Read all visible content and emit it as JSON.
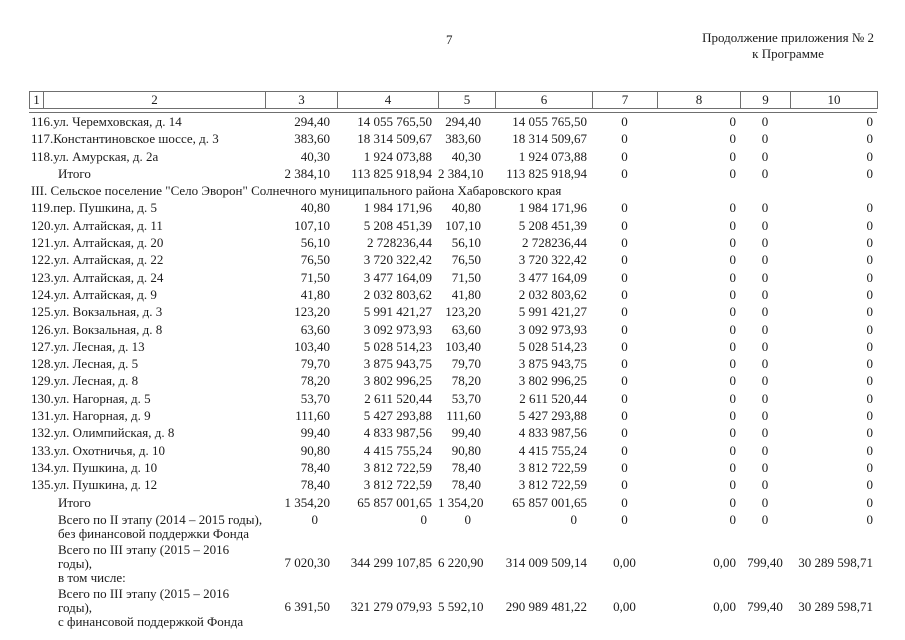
{
  "page": {
    "number": "7",
    "header_right_line1": "Продолжение приложения № 2",
    "header_right_line2": "к Программе"
  },
  "table": {
    "header_cols": [
      "1",
      "2",
      "3",
      "4",
      "5",
      "6",
      "7",
      "8",
      "9",
      "10"
    ],
    "rows": [
      {
        "type": "item",
        "label": "116.ул. Черемховская, д. 14",
        "values": [
          "294,40",
          "14 055 765,50",
          "294,40",
          "14 055 765,50",
          "0",
          "0",
          "0",
          "0"
        ]
      },
      {
        "type": "item",
        "label": "117.Константиновское шоссе, д. 3",
        "values": [
          "383,60",
          "18 314 509,67",
          "383,60",
          "18 314 509,67",
          "0",
          "0",
          "0",
          "0"
        ]
      },
      {
        "type": "item",
        "label": "118.ул. Амурская, д. 2а",
        "values": [
          "40,30",
          "1 924 073,88",
          "40,30",
          "1 924 073,88",
          "0",
          "0",
          "0",
          "0"
        ]
      },
      {
        "type": "total",
        "label": "Итого",
        "values": [
          "2 384,10",
          "113 825 918,94",
          "2 384,10",
          "113 825 918,94",
          "0",
          "0",
          "0",
          "0"
        ]
      },
      {
        "type": "section",
        "label": "III. Сельское поселение \"Село Эворон\" Солнечного муниципального района Хабаровского края"
      },
      {
        "type": "item",
        "label": "119.пер. Пушкина, д. 5",
        "values": [
          "40,80",
          "1 984 171,96",
          "40,80",
          "1 984 171,96",
          "0",
          "0",
          "0",
          "0"
        ]
      },
      {
        "type": "item",
        "label": "120.ул. Алтайская, д. 11",
        "values": [
          "107,10",
          "5 208 451,39",
          "107,10",
          "5 208 451,39",
          "0",
          "0",
          "0",
          "0"
        ]
      },
      {
        "type": "item",
        "label": "121.ул. Алтайская, д. 20",
        "values": [
          "56,10",
          "2 728236,44",
          "56,10",
          "2 728236,44",
          "0",
          "0",
          "0",
          "0"
        ]
      },
      {
        "type": "item",
        "label": "122.ул. Алтайская, д. 22",
        "values": [
          "76,50",
          "3 720 322,42",
          "76,50",
          "3 720 322,42",
          "0",
          "0",
          "0",
          "0"
        ]
      },
      {
        "type": "item",
        "label": "123.ул. Алтайская, д. 24",
        "values": [
          "71,50",
          "3 477 164,09",
          "71,50",
          "3 477 164,09",
          "0",
          "0",
          "0",
          "0"
        ]
      },
      {
        "type": "item",
        "label": "124.ул. Алтайская, д. 9",
        "values": [
          "41,80",
          "2 032 803,62",
          "41,80",
          "2 032 803,62",
          "0",
          "0",
          "0",
          "0"
        ]
      },
      {
        "type": "item",
        "label": "125.ул. Вокзальная, д. 3",
        "values": [
          "123,20",
          "5 991 421,27",
          "123,20",
          "5 991 421,27",
          "0",
          "0",
          "0",
          "0"
        ]
      },
      {
        "type": "item",
        "label": "126.ул. Вокзальная, д. 8",
        "values": [
          "63,60",
          "3 092 973,93",
          "63,60",
          "3 092 973,93",
          "0",
          "0",
          "0",
          "0"
        ]
      },
      {
        "type": "item",
        "label": "127.ул. Лесная, д. 13",
        "values": [
          "103,40",
          "5 028 514,23",
          "103,40",
          "5 028 514,23",
          "0",
          "0",
          "0",
          "0"
        ]
      },
      {
        "type": "item",
        "label": "128.ул. Лесная, д. 5",
        "values": [
          "79,70",
          "3 875 943,75",
          "79,70",
          "3 875 943,75",
          "0",
          "0",
          "0",
          "0"
        ]
      },
      {
        "type": "item",
        "label": "129.ул. Лесная, д. 8",
        "values": [
          "78,20",
          "3 802 996,25",
          "78,20",
          "3 802 996,25",
          "0",
          "0",
          "0",
          "0"
        ]
      },
      {
        "type": "item",
        "label": "130.ул. Нагорная, д. 5",
        "values": [
          "53,70",
          "2 611 520,44",
          "53,70",
          "2 611 520,44",
          "0",
          "0",
          "0",
          "0"
        ]
      },
      {
        "type": "item",
        "label": "131.ул. Нагорная, д. 9",
        "values": [
          "111,60",
          "5 427 293,88",
          "111,60",
          "5 427 293,88",
          "0",
          "0",
          "0",
          "0"
        ]
      },
      {
        "type": "item",
        "label": "132.ул. Олимпийская, д. 8",
        "values": [
          "99,40",
          "4 833 987,56",
          "99,40",
          "4 833 987,56",
          "0",
          "0",
          "0",
          "0"
        ]
      },
      {
        "type": "item",
        "label": "133.ул. Охотничья, д. 10",
        "values": [
          "90,80",
          "4 415 755,24",
          "90,80",
          "4 415 755,24",
          "0",
          "0",
          "0",
          "0"
        ]
      },
      {
        "type": "item",
        "label": "134.ул. Пушкина, д. 10",
        "values": [
          "78,40",
          "3 812 722,59",
          "78,40",
          "3 812 722,59",
          "0",
          "0",
          "0",
          "0"
        ]
      },
      {
        "type": "item",
        "label": "135.ул. Пушкина, д. 12",
        "values": [
          "78,40",
          "3 812 722,59",
          "78,40",
          "3 812 722,59",
          "0",
          "0",
          "0",
          "0"
        ]
      },
      {
        "type": "total",
        "label": "Итого",
        "values": [
          "1 354,20",
          "65 857 001,65",
          "1 354,20",
          "65 857 001,65",
          "0",
          "0",
          "0",
          "0"
        ]
      },
      {
        "type": "summary-top",
        "label_line1": "Всего по II этапу (2014 – 2015 годы),",
        "label_line2": "без финансовой поддержки Фонда",
        "values": [
          "0",
          "0",
          "0",
          "0",
          "0",
          "0",
          "0",
          "0"
        ]
      },
      {
        "type": "summary",
        "label_line1": "Всего по III этапу (2015 – 2016 годы),",
        "label_line2": "в том числе:",
        "values": [
          "7 020,30",
          "344 299 107,85",
          "6 220,90",
          "314 009 509,14",
          "0,00",
          "0,00",
          "799,40",
          "30 289 598,71"
        ]
      },
      {
        "type": "summary",
        "label_line1": "Всего по III этапу (2015 – 2016 годы),",
        "label_line2": "с финансовой поддержкой Фонда",
        "values": [
          "6 391,50",
          "321 279 079,93",
          "5 592,10",
          "290 989 481,22",
          "0,00",
          "0,00",
          "799,40",
          "30 289 598,71"
        ]
      }
    ]
  }
}
